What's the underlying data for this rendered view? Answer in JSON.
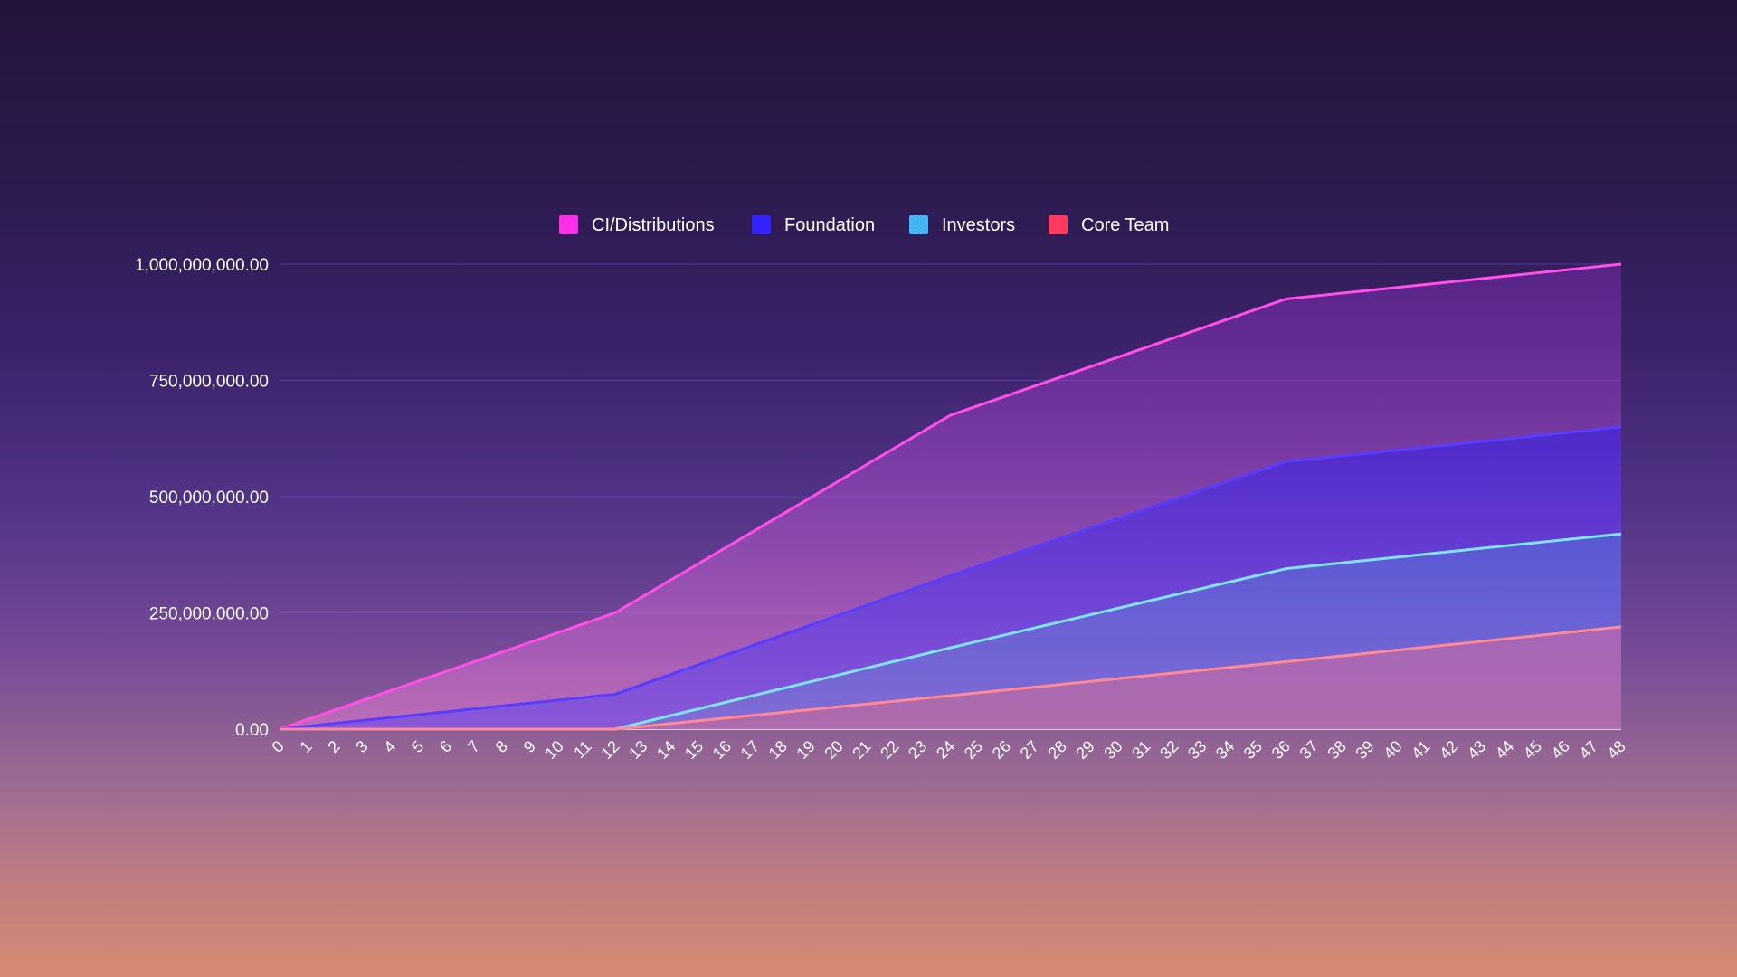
{
  "chart_data": {
    "type": "area",
    "title": "",
    "xlabel": "",
    "ylabel": "",
    "ylim": [
      0,
      1000000000
    ],
    "yticks": [
      "0.00",
      "250,000,000.00",
      "500,000,000.00",
      "750,000,000.00",
      "1,000,000,000.00"
    ],
    "ytick_values": [
      0,
      250000000,
      500000000,
      750000000,
      1000000000
    ],
    "x_range": [
      0,
      48
    ],
    "grid": true,
    "legend_position": "top-center",
    "stacked": true,
    "series": [
      {
        "name": "CI/Distributions",
        "color": "#ff2ee8",
        "line_color": "#ff4fe6",
        "points": [
          [
            0,
            0
          ],
          [
            12,
            250000000
          ],
          [
            24,
            675000000
          ],
          [
            36,
            925000000
          ],
          [
            48,
            1000000000
          ]
        ]
      },
      {
        "name": "Foundation",
        "color": "#3322ff",
        "line_color": "#5a3cff",
        "points": [
          [
            0,
            0
          ],
          [
            12,
            75000000
          ],
          [
            24,
            330000000
          ],
          [
            36,
            575000000
          ],
          [
            48,
            650000000
          ]
        ]
      },
      {
        "name": "Investors",
        "color": "#2aa8ff",
        "line_color": "#7fe4ff",
        "points": [
          [
            0,
            0
          ],
          [
            12,
            0
          ],
          [
            24,
            175000000
          ],
          [
            36,
            345000000
          ],
          [
            48,
            420000000
          ]
        ]
      },
      {
        "name": "Core Team",
        "color": "#ff3a5c",
        "line_color": "#ff8a96",
        "points": [
          [
            0,
            0
          ],
          [
            12,
            0
          ],
          [
            24,
            72000000
          ],
          [
            36,
            145000000
          ],
          [
            48,
            220000000
          ]
        ]
      }
    ]
  }
}
